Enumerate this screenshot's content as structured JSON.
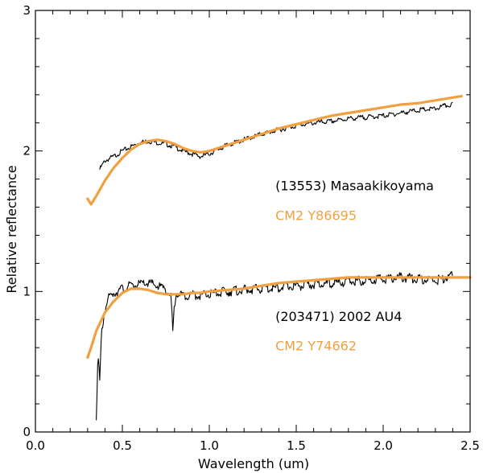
{
  "chart_data": {
    "type": "line",
    "title": "",
    "xlabel": "Wavelength (um)",
    "ylabel": "Relative reflectance",
    "xlim": [
      0.0,
      2.5
    ],
    "ylim": [
      0,
      3
    ],
    "x_ticks": [
      0.0,
      0.5,
      1.0,
      1.5,
      2.0,
      2.5
    ],
    "x_tick_labels": [
      "0.0",
      "0.5",
      "1.0",
      "1.5",
      "2.0",
      "2.5"
    ],
    "y_ticks": [
      0,
      1,
      2,
      3
    ],
    "y_tick_labels": [
      "0",
      "1",
      "2",
      "3"
    ],
    "grid": false,
    "colors": {
      "asteroid": "#000000",
      "meteorite": "#f0a040"
    },
    "annotations": [
      {
        "text": "(13553) Masaakikoyama",
        "color": "#000000",
        "x": 1.38,
        "y": 1.72
      },
      {
        "text": "CM2 Y86695",
        "color": "#f0a040",
        "x": 1.38,
        "y": 1.51
      },
      {
        "text": "(203471) 2002 AU4",
        "color": "#000000",
        "x": 1.38,
        "y": 0.79
      },
      {
        "text": "CM2 Y74662",
        "color": "#f0a040",
        "x": 1.38,
        "y": 0.58
      }
    ],
    "series": [
      {
        "name": "(13553) Masaakikoyama",
        "color": "#000000",
        "width": 1.1,
        "x": [
          0.37,
          0.4,
          0.45,
          0.5,
          0.55,
          0.6,
          0.65,
          0.7,
          0.75,
          0.8,
          0.85,
          0.9,
          0.95,
          1.0,
          1.05,
          1.1,
          1.2,
          1.3,
          1.4,
          1.5,
          1.6,
          1.7,
          1.8,
          1.9,
          2.0,
          2.1,
          2.2,
          2.3,
          2.35,
          2.4
        ],
        "y": [
          1.87,
          1.93,
          1.96,
          2.0,
          2.03,
          2.06,
          2.07,
          2.06,
          2.05,
          2.03,
          2.0,
          1.98,
          1.96,
          1.98,
          2.01,
          2.04,
          2.08,
          2.12,
          2.15,
          2.18,
          2.2,
          2.21,
          2.23,
          2.24,
          2.25,
          2.27,
          2.29,
          2.3,
          2.32,
          2.33
        ],
        "noise": 0.018
      },
      {
        "name": "CM2 Y86695",
        "color": "#f0a040",
        "width": 3.2,
        "x": [
          0.3,
          0.32,
          0.35,
          0.4,
          0.45,
          0.5,
          0.55,
          0.6,
          0.65,
          0.7,
          0.75,
          0.8,
          0.85,
          0.9,
          0.95,
          1.0,
          1.1,
          1.2,
          1.3,
          1.4,
          1.5,
          1.6,
          1.7,
          1.8,
          1.9,
          2.0,
          2.1,
          2.2,
          2.3,
          2.4,
          2.45
        ],
        "y": [
          1.66,
          1.62,
          1.68,
          1.79,
          1.88,
          1.95,
          2.01,
          2.05,
          2.07,
          2.08,
          2.07,
          2.05,
          2.02,
          2.0,
          1.99,
          2.0,
          2.04,
          2.08,
          2.12,
          2.16,
          2.19,
          2.22,
          2.25,
          2.27,
          2.29,
          2.31,
          2.33,
          2.34,
          2.36,
          2.38,
          2.39
        ],
        "noise": 0
      },
      {
        "name": "(203471) 2002 AU4",
        "color": "#000000",
        "width": 1.1,
        "x": [
          0.35,
          0.36,
          0.37,
          0.38,
          0.4,
          0.42,
          0.45,
          0.5,
          0.55,
          0.6,
          0.65,
          0.7,
          0.75,
          0.78,
          0.79,
          0.8,
          0.81,
          0.83,
          0.85,
          0.9,
          0.95,
          1.0,
          1.1,
          1.2,
          1.3,
          1.4,
          1.5,
          1.6,
          1.7,
          1.8,
          1.9,
          2.0,
          2.1,
          2.2,
          2.3,
          2.35,
          2.4
        ],
        "y": [
          0.12,
          0.55,
          0.35,
          0.7,
          0.88,
          0.95,
          0.99,
          1.02,
          1.04,
          1.05,
          1.06,
          1.04,
          1.02,
          0.95,
          0.72,
          0.9,
          1.0,
          0.98,
          0.97,
          0.98,
          0.97,
          0.98,
          1.0,
          1.01,
          1.02,
          1.03,
          1.04,
          1.05,
          1.06,
          1.07,
          1.08,
          1.09,
          1.1,
          1.09,
          1.08,
          1.09,
          1.11
        ],
        "noise": 0.035
      },
      {
        "name": "CM2 Y74662",
        "color": "#f0a040",
        "width": 3.2,
        "x": [
          0.3,
          0.32,
          0.35,
          0.4,
          0.45,
          0.5,
          0.55,
          0.6,
          0.65,
          0.7,
          0.75,
          0.8,
          0.85,
          0.9,
          0.95,
          1.0,
          1.1,
          1.2,
          1.3,
          1.4,
          1.5,
          1.6,
          1.7,
          1.8,
          1.9,
          2.0,
          2.1,
          2.2,
          2.3,
          2.4,
          2.5
        ],
        "y": [
          0.53,
          0.6,
          0.72,
          0.85,
          0.93,
          0.99,
          1.02,
          1.02,
          1.01,
          0.99,
          0.98,
          0.98,
          0.98,
          0.99,
          0.99,
          1.0,
          1.01,
          1.02,
          1.04,
          1.06,
          1.07,
          1.08,
          1.09,
          1.1,
          1.1,
          1.1,
          1.1,
          1.1,
          1.1,
          1.1,
          1.1
        ],
        "noise": 0
      }
    ]
  }
}
